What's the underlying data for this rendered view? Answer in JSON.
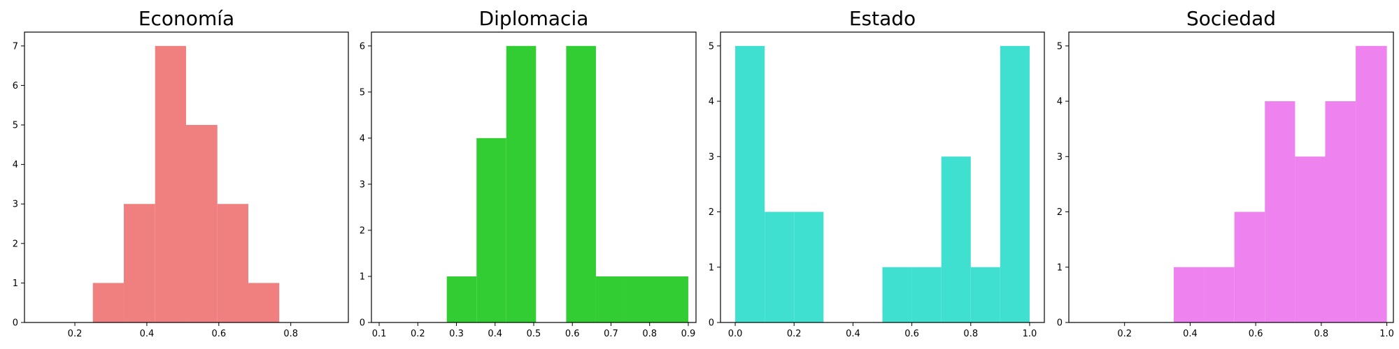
{
  "chart_data": [
    {
      "type": "bar",
      "title": "Economía",
      "color": "#f08080",
      "xlim": [
        0.06,
        0.96
      ],
      "ylim": [
        0,
        7.35
      ],
      "xticks": [
        0.2,
        0.4,
        0.6,
        0.8
      ],
      "xtick_labels": [
        "0.2",
        "0.4",
        "0.6",
        "0.8"
      ],
      "yticks": [
        0,
        1,
        2,
        3,
        4,
        5,
        6,
        7
      ],
      "ytick_labels": [
        "0",
        "1",
        "2",
        "3",
        "4",
        "5",
        "6",
        "7"
      ],
      "bins": [
        {
          "x0": 0.25,
          "x1": 0.336,
          "count": 1
        },
        {
          "x0": 0.336,
          "x1": 0.423,
          "count": 3
        },
        {
          "x0": 0.423,
          "x1": 0.509,
          "count": 7
        },
        {
          "x0": 0.509,
          "x1": 0.596,
          "count": 5
        },
        {
          "x0": 0.596,
          "x1": 0.682,
          "count": 3
        },
        {
          "x0": 0.682,
          "x1": 0.768,
          "count": 1
        }
      ]
    },
    {
      "type": "bar",
      "title": "Diplomacia",
      "color": "#32cd32",
      "xlim": [
        0.08,
        0.92
      ],
      "ylim": [
        0,
        6.3
      ],
      "xticks": [
        0.1,
        0.2,
        0.3,
        0.4,
        0.5,
        0.6,
        0.7,
        0.8,
        0.9
      ],
      "xtick_labels": [
        "0.1",
        "0.2",
        "0.3",
        "0.4",
        "0.5",
        "0.6",
        "0.7",
        "0.8",
        "0.9"
      ],
      "yticks": [
        0,
        1,
        2,
        3,
        4,
        5,
        6
      ],
      "ytick_labels": [
        "0",
        "1",
        "2",
        "3",
        "4",
        "5",
        "6"
      ],
      "bins": [
        {
          "x0": 0.275,
          "x1": 0.352,
          "count": 1
        },
        {
          "x0": 0.352,
          "x1": 0.429,
          "count": 4
        },
        {
          "x0": 0.429,
          "x1": 0.506,
          "count": 6
        },
        {
          "x0": 0.506,
          "x1": 0.584,
          "count": 0
        },
        {
          "x0": 0.584,
          "x1": 0.661,
          "count": 6
        },
        {
          "x0": 0.661,
          "x1": 0.738,
          "count": 1
        },
        {
          "x0": 0.738,
          "x1": 0.815,
          "count": 1
        },
        {
          "x0": 0.815,
          "x1": 0.9,
          "count": 1
        }
      ]
    },
    {
      "type": "bar",
      "title": "Estado",
      "color": "#40e0d0",
      "xlim": [
        -0.05,
        1.05
      ],
      "ylim": [
        0,
        5.25
      ],
      "xticks": [
        0.0,
        0.2,
        0.4,
        0.6,
        0.8,
        1.0
      ],
      "xtick_labels": [
        "0.0",
        "0.2",
        "0.4",
        "0.6",
        "0.8",
        "1.0"
      ],
      "yticks": [
        0,
        1,
        2,
        3,
        4,
        5
      ],
      "ytick_labels": [
        "0",
        "1",
        "2",
        "3",
        "4",
        "5"
      ],
      "bins": [
        {
          "x0": 0.0,
          "x1": 0.1,
          "count": 5
        },
        {
          "x0": 0.1,
          "x1": 0.2,
          "count": 2
        },
        {
          "x0": 0.2,
          "x1": 0.3,
          "count": 2
        },
        {
          "x0": 0.3,
          "x1": 0.4,
          "count": 0
        },
        {
          "x0": 0.4,
          "x1": 0.5,
          "count": 0
        },
        {
          "x0": 0.5,
          "x1": 0.6,
          "count": 1
        },
        {
          "x0": 0.6,
          "x1": 0.7,
          "count": 1
        },
        {
          "x0": 0.7,
          "x1": 0.8,
          "count": 3
        },
        {
          "x0": 0.8,
          "x1": 0.9,
          "count": 1
        },
        {
          "x0": 0.9,
          "x1": 1.0,
          "count": 5
        }
      ]
    },
    {
      "type": "bar",
      "title": "Sociedad",
      "color": "#ee82ee",
      "xlim": [
        0.03,
        1.02
      ],
      "ylim": [
        0,
        5.25
      ],
      "xticks": [
        0.2,
        0.4,
        0.6,
        0.8,
        1.0
      ],
      "xtick_labels": [
        "0.2",
        "0.4",
        "0.6",
        "0.8",
        "1.0"
      ],
      "yticks": [
        0,
        1,
        2,
        3,
        4,
        5
      ],
      "ytick_labels": [
        "0",
        "1",
        "2",
        "3",
        "4",
        "5"
      ],
      "bins": [
        {
          "x0": 0.35,
          "x1": 0.443,
          "count": 1
        },
        {
          "x0": 0.443,
          "x1": 0.535,
          "count": 1
        },
        {
          "x0": 0.535,
          "x1": 0.628,
          "count": 2
        },
        {
          "x0": 0.628,
          "x1": 0.72,
          "count": 4
        },
        {
          "x0": 0.72,
          "x1": 0.812,
          "count": 3
        },
        {
          "x0": 0.812,
          "x1": 0.905,
          "count": 4
        },
        {
          "x0": 0.905,
          "x1": 1.0,
          "count": 5
        }
      ]
    }
  ]
}
